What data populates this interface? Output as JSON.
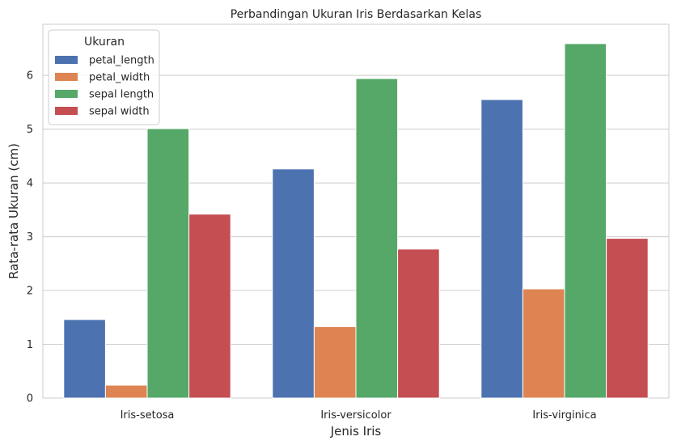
{
  "chart_data": {
    "type": "bar",
    "title": "Perbandingan Ukuran Iris Berdasarkan Kelas",
    "xlabel": "Jenis Iris",
    "ylabel": "Rata-rata Ukuran (cm)",
    "categories": [
      "Iris-setosa",
      "Iris-versicolor",
      "Iris-virginica"
    ],
    "series": [
      {
        "name": "petal_length",
        "color": "#4c72b0",
        "values": [
          1.46,
          4.26,
          5.55
        ]
      },
      {
        "name": "petal_width",
        "color": "#dd8452",
        "values": [
          0.24,
          1.33,
          2.03
        ]
      },
      {
        "name": "sepal length",
        "color": "#55a868",
        "values": [
          5.01,
          5.94,
          6.59
        ]
      },
      {
        "name": "sepal width",
        "color": "#c44e52",
        "values": [
          3.42,
          2.77,
          2.97
        ]
      }
    ],
    "ylim": [
      0,
      6.95
    ],
    "yticks": [
      0,
      1,
      2,
      3,
      4,
      5,
      6
    ],
    "grid": true,
    "legend": {
      "title": "Ukuran",
      "placement": "top-left"
    }
  }
}
